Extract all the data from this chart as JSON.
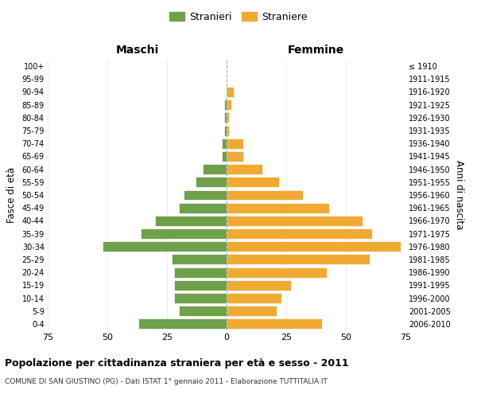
{
  "age_groups": [
    "0-4",
    "5-9",
    "10-14",
    "15-19",
    "20-24",
    "25-29",
    "30-34",
    "35-39",
    "40-44",
    "45-49",
    "50-54",
    "55-59",
    "60-64",
    "65-69",
    "70-74",
    "75-79",
    "80-84",
    "85-89",
    "90-94",
    "95-99",
    "100+"
  ],
  "birth_years": [
    "2006-2010",
    "2001-2005",
    "1996-2000",
    "1991-1995",
    "1986-1990",
    "1981-1985",
    "1976-1980",
    "1971-1975",
    "1966-1970",
    "1961-1965",
    "1956-1960",
    "1951-1955",
    "1946-1950",
    "1941-1945",
    "1936-1940",
    "1931-1935",
    "1926-1930",
    "1921-1925",
    "1916-1920",
    "1911-1915",
    "≤ 1910"
  ],
  "males": [
    37,
    20,
    22,
    22,
    22,
    23,
    52,
    36,
    30,
    20,
    18,
    13,
    10,
    2,
    2,
    1,
    1,
    1,
    0,
    0,
    0
  ],
  "females": [
    40,
    21,
    23,
    27,
    42,
    60,
    73,
    61,
    57,
    43,
    32,
    22,
    15,
    7,
    7,
    1,
    1,
    2,
    3,
    0,
    0
  ],
  "male_color": "#6fa04a",
  "female_color": "#f0aa32",
  "background_color": "#ffffff",
  "grid_color": "#cccccc",
  "xlim": 75,
  "title": "Popolazione per cittadinanza straniera per età e sesso - 2011",
  "subtitle": "COMUNE DI SAN GIUSTINO (PG) - Dati ISTAT 1° gennaio 2011 - Elaborazione TUTTITALIA.IT",
  "xlabel_left": "Maschi",
  "xlabel_right": "Femmine",
  "ylabel_left": "Fasce di età",
  "ylabel_right": "Anni di nascita",
  "legend_male": "Stranieri",
  "legend_female": "Straniere",
  "xticks": [
    -75,
    -50,
    -25,
    0,
    25,
    50,
    75
  ],
  "xtick_labels": [
    "75",
    "50",
    "25",
    "0",
    "25",
    "50",
    "75"
  ]
}
